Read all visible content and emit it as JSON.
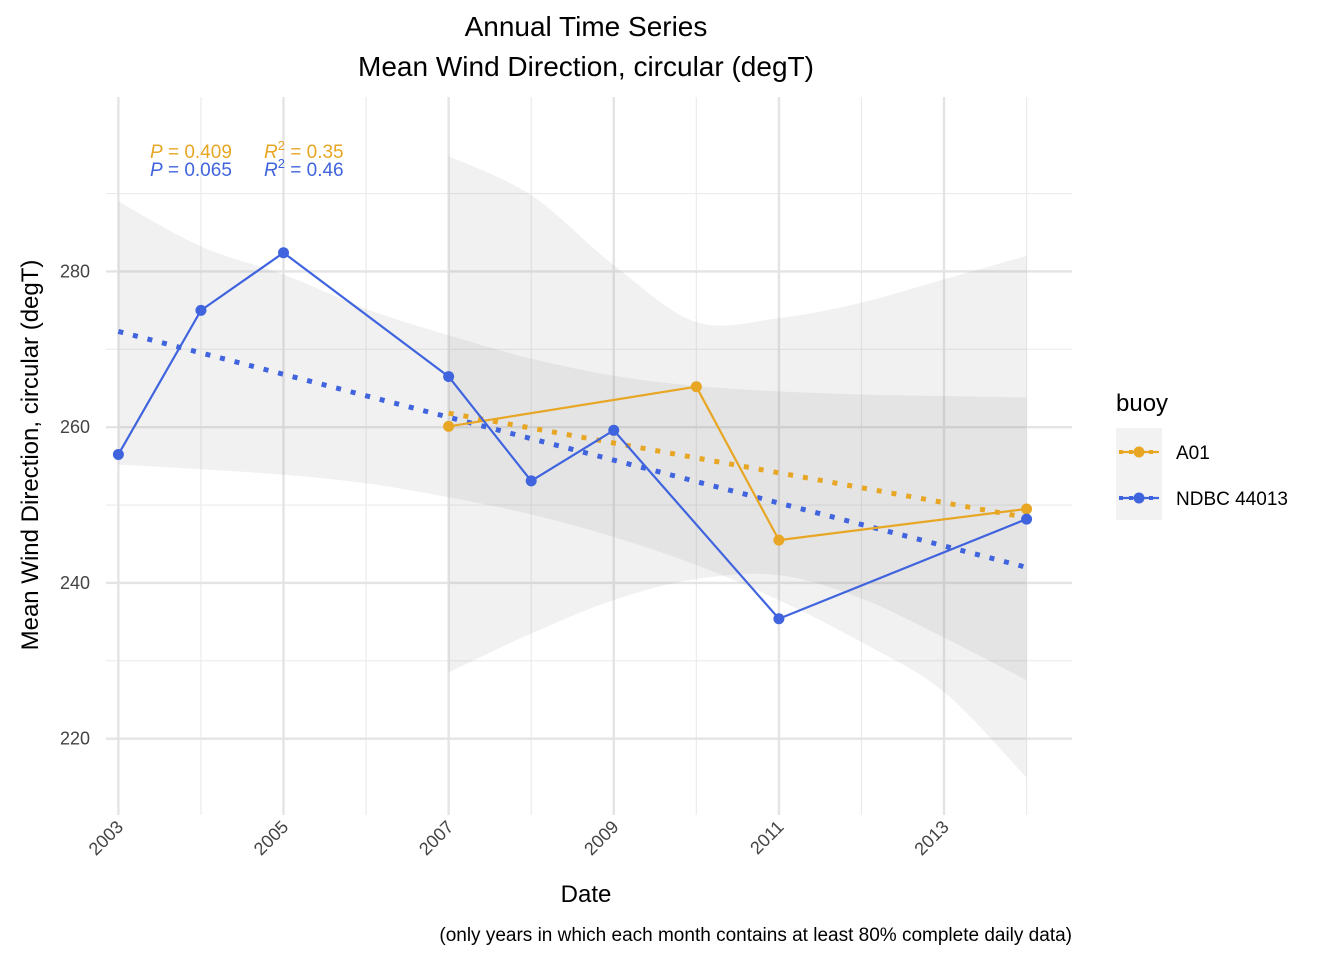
{
  "chart_data": {
    "type": "line",
    "title": [
      "Annual Time Series",
      "Mean Wind Direction, circular (degT)"
    ],
    "xlabel": "Date",
    "ylabel": "Mean Wind Direction, circular (degT)",
    "caption": "(only years in which each month contains at least 80% complete daily data)",
    "xlim": [
      2002.85,
      2014.55
    ],
    "ylim": [
      210.2,
      302.4
    ],
    "x_ticks": [
      2003,
      2005,
      2007,
      2009,
      2011,
      2013
    ],
    "x_tick_labels": [
      "2003",
      "2005",
      "2007",
      "2009",
      "2011",
      "2013"
    ],
    "x_minor_ticks": [
      2004,
      2006,
      2008,
      2010,
      2012,
      2014
    ],
    "y_ticks": [
      220,
      240,
      260,
      280
    ],
    "y_tick_labels": [
      "220",
      "240",
      "260",
      "280"
    ],
    "y_minor_ticks": [
      230,
      250,
      270,
      290
    ],
    "grid": true,
    "legend": {
      "title": "buoy",
      "placement": "right"
    },
    "series": [
      {
        "name": "A01",
        "color": "#E8A625",
        "x": [
          2007,
          2010,
          2011,
          2014
        ],
        "y": [
          260.1,
          265.2,
          245.5,
          249.5
        ],
        "trend": {
          "x": [
            2007,
            2014
          ],
          "y": [
            261.8,
            248.4
          ]
        },
        "ribbon": {
          "x": [
            2007,
            2008,
            2009,
            2010,
            2011,
            2012,
            2013,
            2014
          ],
          "lower": [
            228.5,
            233.5,
            237.8,
            240.5,
            241.0,
            238.0,
            233.0,
            227.5
          ],
          "upper": [
            294.8,
            289.8,
            280.8,
            273.5,
            274.0,
            276.0,
            279.0,
            282.0
          ]
        },
        "stats": {
          "p_label": "P",
          "p_value": "= 0.409",
          "r2_label": "R",
          "r2_sup": "2",
          "r2_value": "= 0.35"
        }
      },
      {
        "name": "NDBC 44013",
        "color": "#3F64DE",
        "x": [
          2003,
          2004,
          2005,
          2007,
          2008,
          2009,
          2011,
          2014
        ],
        "y": [
          256.5,
          275.0,
          282.4,
          266.5,
          253.1,
          259.6,
          235.4,
          248.2
        ],
        "trend": {
          "x": [
            2003,
            2014
          ],
          "y": [
            272.3,
            242.0
          ]
        },
        "ribbon": {
          "x": [
            2003,
            2004,
            2005,
            2006,
            2007,
            2008,
            2009,
            2010,
            2011,
            2012,
            2013,
            2014
          ],
          "lower": [
            255.2,
            254.6,
            253.9,
            252.8,
            251.0,
            248.8,
            245.9,
            242.3,
            237.8,
            232.4,
            226.0,
            215.0
          ],
          "upper": [
            289.0,
            283.2,
            279.6,
            275.2,
            271.8,
            268.8,
            266.6,
            265.3,
            264.6,
            264.2,
            264.0,
            263.8
          ]
        },
        "stats": {
          "p_label": "P",
          "p_value": "= 0.065",
          "r2_label": "R",
          "r2_sup": "2",
          "r2_value": "= 0.46"
        }
      }
    ]
  }
}
